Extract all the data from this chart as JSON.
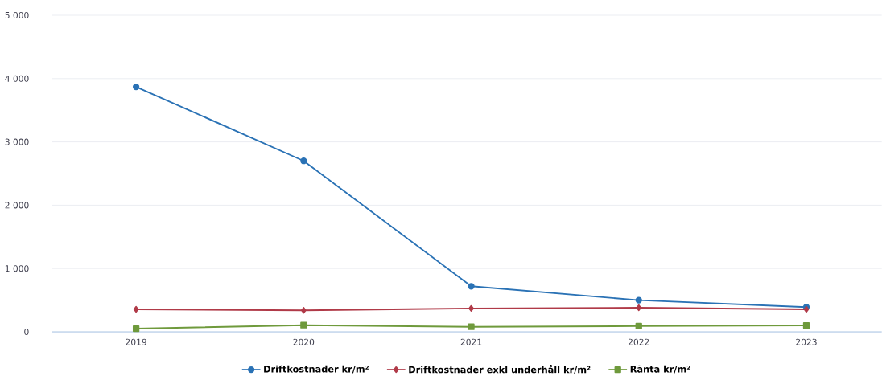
{
  "chart_data": {
    "type": "line",
    "categories": [
      "2019",
      "2020",
      "2021",
      "2022",
      "2023"
    ],
    "series": [
      {
        "name": "Driftkostnader kr/m²",
        "color": "#2a72b5",
        "marker": "circle",
        "values": [
          3870,
          2700,
          720,
          500,
          390
        ]
      },
      {
        "name": "Driftkostnader exkl underhåll kr/m²",
        "color": "#b03a48",
        "marker": "diamond",
        "values": [
          355,
          340,
          370,
          380,
          355
        ]
      },
      {
        "name": "Ränta kr/m²",
        "color": "#6f9a3c",
        "marker": "square",
        "values": [
          50,
          105,
          80,
          90,
          100
        ]
      }
    ],
    "ylim": [
      0,
      5000
    ],
    "yticks": [
      0,
      {
        "value": 1000,
        "label": "1 000"
      },
      {
        "value": 2000,
        "label": "2 000"
      },
      {
        "value": 3000,
        "label": "3 000"
      },
      {
        "value": 4000,
        "label": "4 000"
      },
      {
        "value": 5000,
        "label": "5 000"
      }
    ],
    "grid": "y",
    "legend": "bottom"
  }
}
